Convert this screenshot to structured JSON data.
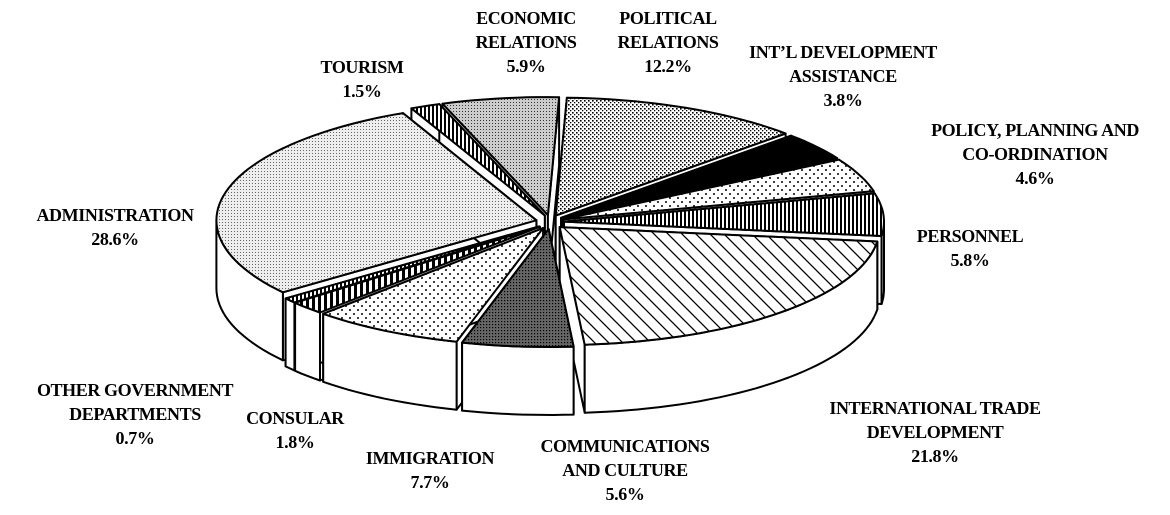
{
  "chart_data": {
    "type": "pie",
    "categories": [
      "POLITICAL RELATIONS",
      "INT’L DEVELOPMENT ASSISTANCE",
      "POLICY, PLANNING AND CO-ORDINATION",
      "PERSONNEL",
      "INTERNATIONAL TRADE DEVELOPMENT",
      "COMMUNICATIONS AND CULTURE",
      "IMMIGRATION",
      "CONSULAR",
      "OTHER GOVERNMENT DEPARTMENTS",
      "ADMINISTRATION",
      "TOURISM",
      "ECONOMIC RELATIONS"
    ],
    "values": [
      12.2,
      3.8,
      4.6,
      5.8,
      21.8,
      5.6,
      7.7,
      1.8,
      0.7,
      28.6,
      1.5,
      5.9
    ],
    "value_labels": [
      "12.2%",
      "3.8%",
      "4.6%",
      "5.8%",
      "21.8%",
      "5.6%",
      "7.7%",
      "1.8%",
      "0.7%",
      "28.6%",
      "1.5%",
      "5.9%"
    ]
  }
}
